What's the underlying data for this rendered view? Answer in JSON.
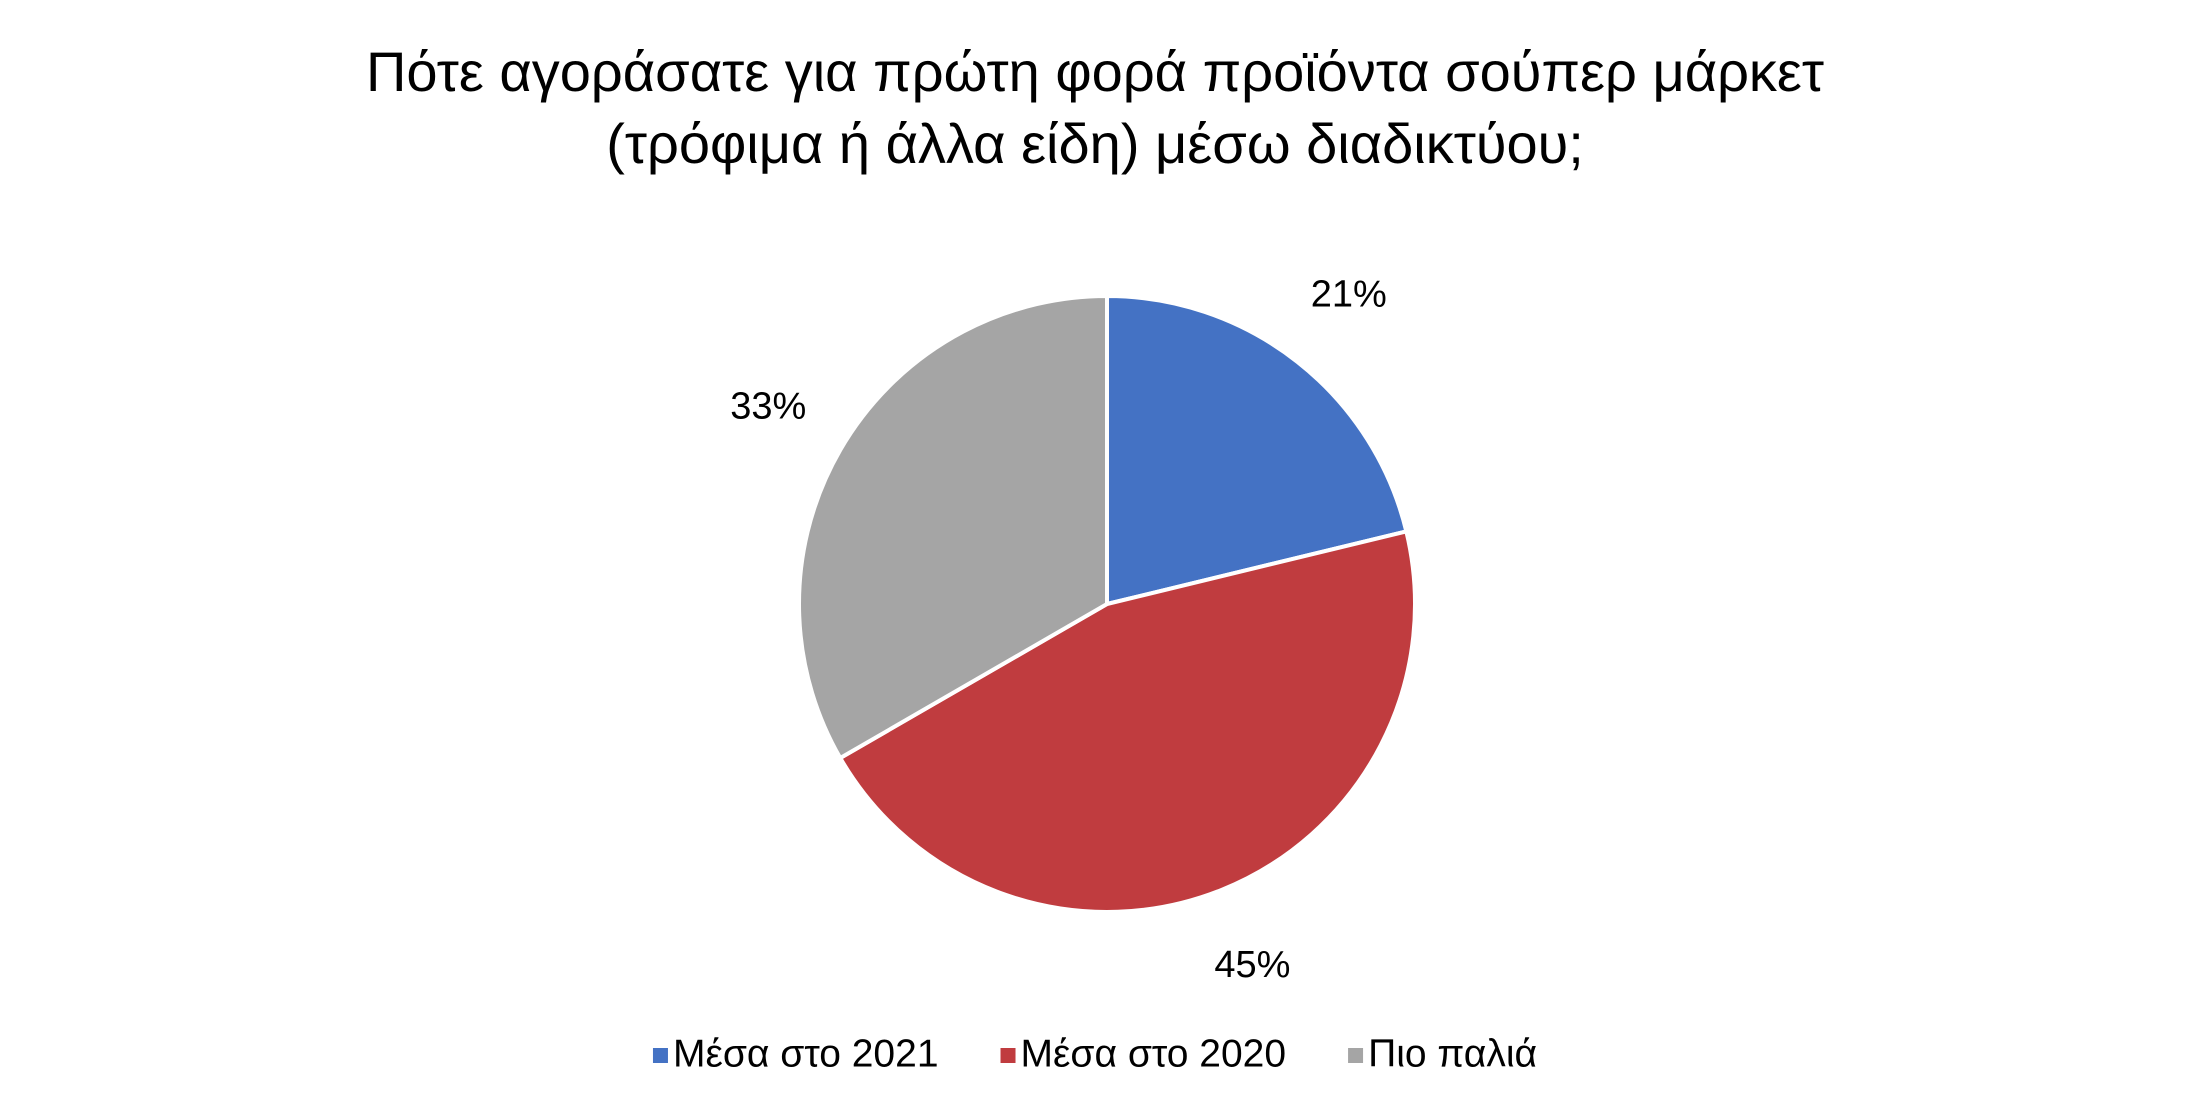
{
  "chart_data": {
    "type": "pie",
    "title": [
      "Πότε αγοράσατε για πρώτη φορά προϊόντα σούπερ μάρκετ",
      "(τρόφιμα ή άλλα είδη) μέσω διαδικτύου;"
    ],
    "categories": [
      "Μέσα στο 2021",
      "Μέσα στο 2020",
      "Πιο παλιά"
    ],
    "values": [
      21,
      45,
      33
    ],
    "value_labels": [
      "21%",
      "45%",
      "33%"
    ],
    "colors": [
      "#4472c4",
      "#c03c3f",
      "#a5a5a5"
    ],
    "legend": "bottom"
  }
}
